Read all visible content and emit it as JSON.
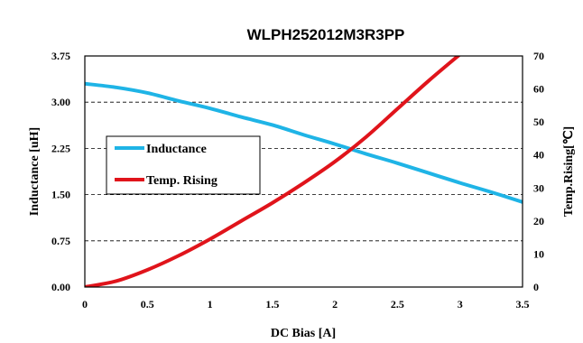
{
  "chart_data": {
    "type": "line",
    "title": "WLPH252012M3R3PP",
    "xlabel": "DC Bias [A]",
    "ylabel": "Inductance [uH]",
    "y2label": "Temp.Rising[℃]",
    "xlim": [
      0,
      3.5
    ],
    "ylim": [
      0,
      3.75
    ],
    "y2lim": [
      0,
      70
    ],
    "x_ticks": [
      "0",
      "0.5",
      "1",
      "1.5",
      "2",
      "2.5",
      "3",
      "3.5"
    ],
    "y_ticks": [
      "0.00",
      "0.75",
      "1.50",
      "2.25",
      "3.00",
      "3.75"
    ],
    "y2_ticks": [
      "0",
      "10",
      "20",
      "30",
      "40",
      "50",
      "60",
      "70"
    ],
    "grid": "horizontal-dashed",
    "legend_position": "center-left",
    "series": [
      {
        "name": "Inductance",
        "axis": "left",
        "color": "#1fb4e6",
        "x": [
          0,
          0.25,
          0.5,
          0.75,
          1.0,
          1.25,
          1.5,
          1.75,
          2.0,
          2.25,
          2.5,
          2.75,
          3.0,
          3.25,
          3.5
        ],
        "values": [
          3.3,
          3.24,
          3.15,
          3.02,
          2.9,
          2.76,
          2.63,
          2.47,
          2.32,
          2.16,
          2.01,
          1.85,
          1.69,
          1.54,
          1.38
        ]
      },
      {
        "name": "Temp. Rising",
        "axis": "right",
        "color": "#e0141b",
        "x": [
          0,
          0.25,
          0.5,
          0.75,
          1.0,
          1.25,
          1.5,
          1.75,
          2.0,
          2.25,
          2.5,
          2.75,
          3.0
        ],
        "values": [
          0,
          1.8,
          5.2,
          9.5,
          14.5,
          20.0,
          25.5,
          31.5,
          38.0,
          45.5,
          54.0,
          62.5,
          70.5
        ]
      }
    ]
  }
}
